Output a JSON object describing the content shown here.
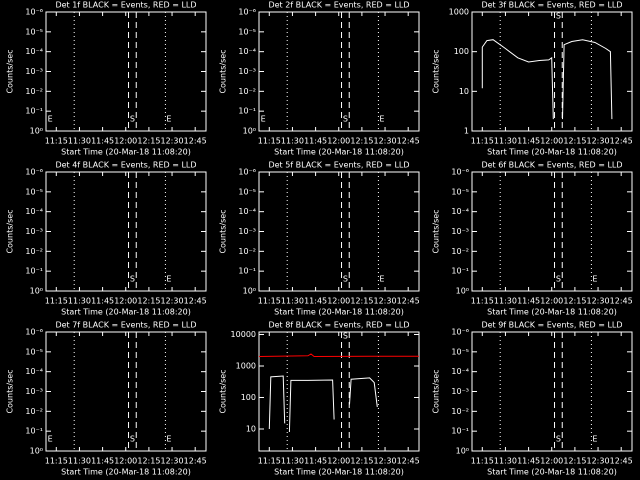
{
  "chart_data": [
    {
      "type": "line",
      "title": "Det 1f BLACK = Events, RED = LLD",
      "xlabel": "Start Time (20-Mar-18 11:08:20)",
      "ylabel": "Counts/sec",
      "ylog": true,
      "xlim": [
        668.33,
        772
      ],
      "xticks": [
        {
          "value": 675,
          "label": "11:15"
        },
        {
          "value": 690,
          "label": "11:30"
        },
        {
          "value": 705,
          "label": "11:45"
        },
        {
          "value": 720,
          "label": "12:00"
        },
        {
          "value": 735,
          "label": "12:15"
        },
        {
          "value": 750,
          "label": "12:30"
        },
        {
          "value": 765,
          "label": "12:45"
        }
      ],
      "ylim": [
        1,
        1e-06
      ],
      "yticks": [
        {
          "value": 1,
          "label": "10⁰"
        },
        {
          "value": 0.1,
          "label": "10⁻¹"
        },
        {
          "value": 0.01,
          "label": "10⁻²"
        },
        {
          "value": 0.001,
          "label": "10⁻³"
        },
        {
          "value": 0.0001,
          "label": "10⁻⁴"
        },
        {
          "value": 1e-05,
          "label": "10⁻⁵"
        },
        {
          "value": 1e-06,
          "label": "10⁻⁶"
        }
      ],
      "dotted": [
        686.6,
        745.7
      ],
      "dashed": [
        721.8,
        726.8
      ],
      "markers": [
        {
          "x": 671,
          "label": "E"
        },
        {
          "x": 724.3,
          "label": "S"
        },
        {
          "x": 748,
          "label": "E"
        }
      ],
      "series": []
    },
    {
      "type": "line",
      "title": "Det 2f BLACK = Events, RED = LLD",
      "xlabel": "Start Time (20-Mar-18 11:08:20)",
      "ylabel": "Counts/sec",
      "ylog": true,
      "xlim": [
        668.33,
        772
      ],
      "xticks": [
        {
          "value": 675,
          "label": "11:15"
        },
        {
          "value": 690,
          "label": "11:30"
        },
        {
          "value": 705,
          "label": "11:45"
        },
        {
          "value": 720,
          "label": "12:00"
        },
        {
          "value": 735,
          "label": "12:15"
        },
        {
          "value": 750,
          "label": "12:30"
        },
        {
          "value": 765,
          "label": "12:45"
        }
      ],
      "ylim": [
        1,
        1e-06
      ],
      "yticks": [
        {
          "value": 1,
          "label": "10⁰"
        },
        {
          "value": 0.1,
          "label": "10⁻¹"
        },
        {
          "value": 0.01,
          "label": "10⁻²"
        },
        {
          "value": 0.001,
          "label": "10⁻³"
        },
        {
          "value": 0.0001,
          "label": "10⁻⁴"
        },
        {
          "value": 1e-05,
          "label": "10⁻⁵"
        },
        {
          "value": 1e-06,
          "label": "10⁻⁶"
        }
      ],
      "dotted": [
        686.6,
        745.7
      ],
      "dashed": [
        721.8,
        726.8
      ],
      "markers": [
        {
          "x": 671,
          "label": "E"
        },
        {
          "x": 724.3,
          "label": "S"
        },
        {
          "x": 748,
          "label": "E"
        }
      ],
      "series": []
    },
    {
      "type": "line",
      "title": "Det 3f BLACK = Events, RED = LLD",
      "xlabel": "Start Time (20-Mar-18 11:08:20)",
      "ylabel": "Counts/sec",
      "ylog": true,
      "xlim": [
        668.33,
        772
      ],
      "xticks": [
        {
          "value": 675,
          "label": "11:15"
        },
        {
          "value": 690,
          "label": "11:30"
        },
        {
          "value": 705,
          "label": "11:45"
        },
        {
          "value": 720,
          "label": "12:00"
        },
        {
          "value": 735,
          "label": "12:15"
        },
        {
          "value": 750,
          "label": "12:30"
        },
        {
          "value": 765,
          "label": "12:45"
        }
      ],
      "ylim": [
        1,
        1000
      ],
      "yticks": [
        1,
        10,
        100,
        1000
      ],
      "dotted": [
        686.6,
        745.7
      ],
      "dashed": [
        721.8,
        726.8
      ],
      "markers": [
        {
          "x": 724.3,
          "label": "S"
        }
      ],
      "series": [
        {
          "color": "#000000",
          "x": [
            675,
            675,
            678,
            682,
            690,
            698,
            705,
            712,
            718,
            720,
            721,
            null,
            727,
            728,
            733,
            740,
            748,
            755,
            758,
            759
          ],
          "values": [
            12,
            130,
            190,
            200,
            120,
            70,
            55,
            60,
            62,
            70,
            2,
            null,
            2,
            150,
            180,
            200,
            170,
            120,
            100,
            2
          ]
        }
      ]
    },
    {
      "type": "line",
      "title": "Det 4f BLACK = Events, RED = LLD",
      "xlabel": "Start Time (20-Mar-18 11:08:20)",
      "ylabel": "Counts/sec",
      "ylog": true,
      "xlim": [
        668.33,
        772
      ],
      "xticks": [
        {
          "value": 675,
          "label": "11:15"
        },
        {
          "value": 690,
          "label": "11:30"
        },
        {
          "value": 705,
          "label": "11:45"
        },
        {
          "value": 720,
          "label": "12:00"
        },
        {
          "value": 735,
          "label": "12:15"
        },
        {
          "value": 750,
          "label": "12:30"
        },
        {
          "value": 765,
          "label": "12:45"
        }
      ],
      "ylim": [
        1,
        1e-06
      ],
      "yticks": [
        {
          "value": 1,
          "label": "10⁰"
        },
        {
          "value": 0.1,
          "label": "10⁻¹"
        },
        {
          "value": 0.01,
          "label": "10⁻²"
        },
        {
          "value": 0.001,
          "label": "10⁻³"
        },
        {
          "value": 0.0001,
          "label": "10⁻⁴"
        },
        {
          "value": 1e-05,
          "label": "10⁻⁵"
        },
        {
          "value": 1e-06,
          "label": "10⁻⁶"
        }
      ],
      "dotted": [
        686.6,
        745.7
      ],
      "dashed": [
        721.8,
        726.8
      ],
      "markers": [
        {
          "x": 724.3,
          "label": "S"
        },
        {
          "x": 748,
          "label": "E"
        }
      ],
      "series": []
    },
    {
      "type": "line",
      "title": "Det 5f BLACK = Events, RED = LLD",
      "xlabel": "Start Time (20-Mar-18 11:08:20)",
      "ylabel": "Counts/sec",
      "ylog": true,
      "xlim": [
        668.33,
        772
      ],
      "xticks": [
        {
          "value": 675,
          "label": "11:15"
        },
        {
          "value": 690,
          "label": "11:30"
        },
        {
          "value": 705,
          "label": "11:45"
        },
        {
          "value": 720,
          "label": "12:00"
        },
        {
          "value": 735,
          "label": "12:15"
        },
        {
          "value": 750,
          "label": "12:30"
        },
        {
          "value": 765,
          "label": "12:45"
        }
      ],
      "ylim": [
        1,
        1e-06
      ],
      "yticks": [
        {
          "value": 1,
          "label": "10⁰"
        },
        {
          "value": 0.1,
          "label": "10⁻¹"
        },
        {
          "value": 0.01,
          "label": "10⁻²"
        },
        {
          "value": 0.001,
          "label": "10⁻³"
        },
        {
          "value": 0.0001,
          "label": "10⁻⁴"
        },
        {
          "value": 1e-05,
          "label": "10⁻⁵"
        },
        {
          "value": 1e-06,
          "label": "10⁻⁶"
        }
      ],
      "dotted": [
        686.6,
        745.7
      ],
      "dashed": [
        721.8,
        726.8
      ],
      "markers": [
        {
          "x": 724.3,
          "label": "S"
        },
        {
          "x": 748,
          "label": "E"
        }
      ],
      "series": []
    },
    {
      "type": "line",
      "title": "Det 6f BLACK = Events, RED = LLD",
      "xlabel": "Start Time (20-Mar-18 11:08:20)",
      "ylabel": "Counts/sec",
      "ylog": true,
      "xlim": [
        668.33,
        772
      ],
      "xticks": [
        {
          "value": 675,
          "label": "11:15"
        },
        {
          "value": 690,
          "label": "11:30"
        },
        {
          "value": 705,
          "label": "11:45"
        },
        {
          "value": 720,
          "label": "12:00"
        },
        {
          "value": 735,
          "label": "12:15"
        },
        {
          "value": 750,
          "label": "12:30"
        },
        {
          "value": 765,
          "label": "12:45"
        }
      ],
      "ylim": [
        1,
        1e-06
      ],
      "yticks": [
        {
          "value": 1,
          "label": "10⁰"
        },
        {
          "value": 0.1,
          "label": "10⁻¹"
        },
        {
          "value": 0.01,
          "label": "10⁻²"
        },
        {
          "value": 0.001,
          "label": "10⁻³"
        },
        {
          "value": 0.0001,
          "label": "10⁻⁴"
        },
        {
          "value": 1e-05,
          "label": "10⁻⁵"
        },
        {
          "value": 1e-06,
          "label": "10⁻⁶"
        }
      ],
      "dotted": [
        686.6,
        745.7
      ],
      "dashed": [
        721.8,
        726.8
      ],
      "markers": [
        {
          "x": 724.3,
          "label": "S"
        },
        {
          "x": 748,
          "label": "E"
        }
      ],
      "series": []
    },
    {
      "type": "line",
      "title": "Det 7f BLACK = Events, RED = LLD",
      "xlabel": "Start Time (20-Mar-18 11:08:20)",
      "ylabel": "Counts/sec",
      "ylog": true,
      "xlim": [
        668.33,
        772
      ],
      "xticks": [
        {
          "value": 675,
          "label": "11:15"
        },
        {
          "value": 690,
          "label": "11:30"
        },
        {
          "value": 705,
          "label": "11:45"
        },
        {
          "value": 720,
          "label": "12:00"
        },
        {
          "value": 735,
          "label": "12:15"
        },
        {
          "value": 750,
          "label": "12:30"
        },
        {
          "value": 765,
          "label": "12:45"
        }
      ],
      "ylim": [
        1,
        1e-06
      ],
      "yticks": [
        {
          "value": 1,
          "label": "10⁰"
        },
        {
          "value": 0.1,
          "label": "10⁻¹"
        },
        {
          "value": 0.01,
          "label": "10⁻²"
        },
        {
          "value": 0.001,
          "label": "10⁻³"
        },
        {
          "value": 0.0001,
          "label": "10⁻⁴"
        },
        {
          "value": 1e-05,
          "label": "10⁻⁵"
        },
        {
          "value": 1e-06,
          "label": "10⁻⁶"
        }
      ],
      "dotted": [
        686.6,
        745.7
      ],
      "dashed": [
        721.8,
        726.8
      ],
      "markers": [
        {
          "x": 671,
          "label": "E"
        },
        {
          "x": 724.3,
          "label": "S"
        },
        {
          "x": 748,
          "label": "E"
        }
      ],
      "series": []
    },
    {
      "type": "line",
      "title": "Det 8f BLACK = Events, RED = LLD",
      "xlabel": "Start Time (20-Mar-18 11:08:20)",
      "ylabel": "Counts/sec",
      "ylog": true,
      "xlim": [
        668.33,
        772
      ],
      "xticks": [
        {
          "value": 675,
          "label": "11:15"
        },
        {
          "value": 690,
          "label": "11:30"
        },
        {
          "value": 705,
          "label": "11:45"
        },
        {
          "value": 720,
          "label": "12:00"
        },
        {
          "value": 735,
          "label": "12:15"
        },
        {
          "value": 750,
          "label": "12:30"
        },
        {
          "value": 765,
          "label": "12:45"
        }
      ],
      "ylim": [
        2,
        12000
      ],
      "yticks": [
        10,
        100,
        1000,
        10000
      ],
      "dotted": [
        686.6,
        745.7
      ],
      "dashed": [
        721.8,
        726.8
      ],
      "markers": [
        {
          "x": 724.3,
          "label": "S"
        }
      ],
      "series": [
        {
          "color": "#000000",
          "x": [
            675,
            676,
            684,
            685,
            null,
            688,
            689,
            700,
            716,
            717,
            null,
            727,
            728,
            740,
            743,
            745
          ],
          "values": [
            10,
            450,
            480,
            15,
            null,
            8,
            350,
            350,
            360,
            20,
            null,
            60,
            380,
            420,
            300,
            50
          ]
        },
        {
          "color": "#ff0000",
          "x": [
            668.33,
            700,
            702,
            704,
            740,
            772
          ],
          "values": [
            2000,
            2100,
            2400,
            2000,
            2050,
            2050
          ]
        }
      ]
    },
    {
      "type": "line",
      "title": "Det 9f BLACK = Events, RED = LLD",
      "xlabel": "Start Time (20-Mar-18 11:08:20)",
      "ylabel": "Counts/sec",
      "ylog": true,
      "xlim": [
        668.33,
        772
      ],
      "xticks": [
        {
          "value": 675,
          "label": "11:15"
        },
        {
          "value": 690,
          "label": "11:30"
        },
        {
          "value": 705,
          "label": "11:45"
        },
        {
          "value": 720,
          "label": "12:00"
        },
        {
          "value": 735,
          "label": "12:15"
        },
        {
          "value": 750,
          "label": "12:30"
        },
        {
          "value": 765,
          "label": "12:45"
        }
      ],
      "ylim": [
        1,
        1e-06
      ],
      "yticks": [
        {
          "value": 1,
          "label": "10⁰"
        },
        {
          "value": 0.1,
          "label": "10⁻¹"
        },
        {
          "value": 0.01,
          "label": "10⁻²"
        },
        {
          "value": 0.001,
          "label": "10⁻³"
        },
        {
          "value": 0.0001,
          "label": "10⁻⁴"
        },
        {
          "value": 1e-05,
          "label": "10⁻⁵"
        },
        {
          "value": 1e-06,
          "label": "10⁻⁶"
        }
      ],
      "dotted": [
        686.6,
        745.7
      ],
      "dashed": [
        721.8,
        726.8
      ],
      "markers": [
        {
          "x": 724.3,
          "label": "S"
        },
        {
          "x": 748,
          "label": "E"
        }
      ],
      "series": []
    }
  ]
}
